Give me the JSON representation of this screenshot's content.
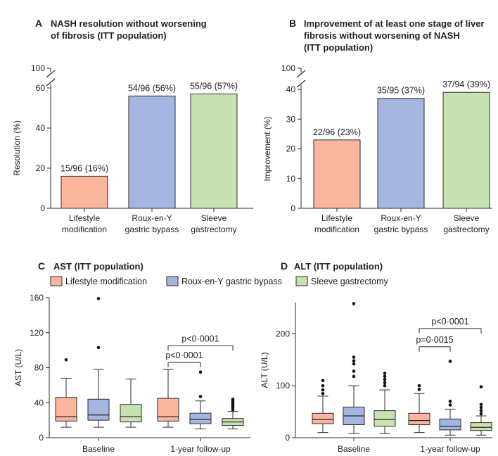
{
  "colors": {
    "lifestyle": "#f9b59d",
    "rygb": "#a4b5df",
    "sleeve": "#c9e2b1",
    "stroke": "#2b2b2b"
  },
  "legend": [
    "Lifestyle modification",
    "Roux-en-Y gastric bypass",
    "Sleeve gastrectomy"
  ],
  "chart_data": [
    {
      "id": "A",
      "type": "bar",
      "letter": "A",
      "title": [
        "NASH resolution without worsening",
        "of fibrosis (ITT population)"
      ],
      "ylabel": "Resolution (%)",
      "ylim": [
        0,
        60
      ],
      "yticks": [
        0,
        20,
        40,
        60
      ],
      "axis_break_top": "100",
      "categories": [
        [
          "Lifestyle",
          "modification"
        ],
        [
          "Roux-en-Y",
          "gastric bypass"
        ],
        [
          "Sleeve",
          "gastrectomy"
        ]
      ],
      "values": [
        16,
        56,
        57
      ],
      "data_labels": [
        "15/96 (16%)",
        "54/96 (56%)",
        "55/96 (57%)"
      ]
    },
    {
      "id": "B",
      "type": "bar",
      "letter": "B",
      "title": [
        "Improvement of at least one stage of liver",
        "fibrosis without worsening of NASH",
        "(ITT population)"
      ],
      "ylabel": "Improvement (%)",
      "ylim": [
        0,
        40
      ],
      "yticks": [
        0,
        10,
        20,
        30,
        40
      ],
      "axis_break_top": "100",
      "categories": [
        [
          "Lifestyle",
          "modification"
        ],
        [
          "Roux-en-Y",
          "gastric bypass"
        ],
        [
          "Sleeve",
          "gastrectomy"
        ]
      ],
      "values": [
        23,
        37,
        39
      ],
      "data_labels": [
        "22/96 (23%)",
        "35/95 (37%)",
        "37/94 (39%)"
      ]
    },
    {
      "id": "C",
      "type": "box",
      "letter": "C",
      "title": "AST (ITT population)",
      "ylabel": "AST (U/L)",
      "ylim": [
        0,
        160
      ],
      "yticks": [
        0,
        40,
        80,
        120,
        160
      ],
      "groups": [
        "Baseline",
        "1-year follow-up"
      ],
      "boxes": [
        {
          "group": 0,
          "arm": 0,
          "min": 12,
          "q1": 19,
          "median": 24,
          "q3": 46,
          "max": 68,
          "outliers": [
            89
          ]
        },
        {
          "group": 0,
          "arm": 1,
          "min": 12,
          "q1": 20,
          "median": 26,
          "q3": 44,
          "max": 78,
          "outliers": [
            103,
            159
          ]
        },
        {
          "group": 0,
          "arm": 2,
          "min": 12,
          "q1": 18,
          "median": 24,
          "q3": 38,
          "max": 67,
          "outliers": []
        },
        {
          "group": 1,
          "arm": 0,
          "min": 12,
          "q1": 19,
          "median": 24,
          "q3": 45,
          "max": 78,
          "outliers": []
        },
        {
          "group": 1,
          "arm": 1,
          "min": 10,
          "q1": 16,
          "median": 21,
          "q3": 28,
          "max": 42,
          "outliers": [
            47,
            75
          ]
        },
        {
          "group": 1,
          "arm": 2,
          "min": 10,
          "q1": 14,
          "median": 18,
          "q3": 22,
          "max": 30,
          "outliers": [
            32,
            34,
            36,
            38,
            40,
            42,
            44
          ]
        }
      ],
      "comparisons": [
        {
          "from": 0,
          "to": 1,
          "label": "p<0·0001",
          "y": 86
        },
        {
          "from": 0,
          "to": 2,
          "label": "p<0·0001",
          "y": 105
        }
      ]
    },
    {
      "id": "D",
      "type": "box",
      "letter": "D",
      "title": "ALT (ITT population)",
      "ylabel": "ALT (U/L)",
      "ylim": [
        0,
        260
      ],
      "yticks": [
        0,
        100,
        200
      ],
      "groups": [
        "Baseline",
        "1-year follow-up"
      ],
      "boxes": [
        {
          "group": 0,
          "arm": 0,
          "min": 10,
          "q1": 27,
          "median": 35,
          "q3": 47,
          "max": 80,
          "outliers": [
            85,
            92,
            100,
            110
          ]
        },
        {
          "group": 0,
          "arm": 1,
          "min": 8,
          "q1": 25,
          "median": 42,
          "q3": 59,
          "max": 100,
          "outliers": [
            118,
            128,
            142,
            148,
            155,
            258
          ]
        },
        {
          "group": 0,
          "arm": 2,
          "min": 8,
          "q1": 22,
          "median": 35,
          "q3": 52,
          "max": 92,
          "outliers": [
            100,
            106,
            112,
            118,
            124
          ]
        },
        {
          "group": 1,
          "arm": 0,
          "min": 10,
          "q1": 25,
          "median": 33,
          "q3": 47,
          "max": 85,
          "outliers": [
            93,
            100
          ]
        },
        {
          "group": 1,
          "arm": 1,
          "min": 5,
          "q1": 15,
          "median": 22,
          "q3": 36,
          "max": 55,
          "outliers": [
            63,
            70,
            147
          ]
        },
        {
          "group": 1,
          "arm": 2,
          "min": 5,
          "q1": 14,
          "median": 20,
          "q3": 29,
          "max": 42,
          "outliers": [
            46,
            52,
            58,
            64,
            98
          ]
        }
      ],
      "comparisons": [
        {
          "from": 0,
          "to": 1,
          "label": "p=0·0015",
          "y": 175
        },
        {
          "from": 0,
          "to": 2,
          "label": "p<0·0001",
          "y": 210
        }
      ]
    }
  ]
}
